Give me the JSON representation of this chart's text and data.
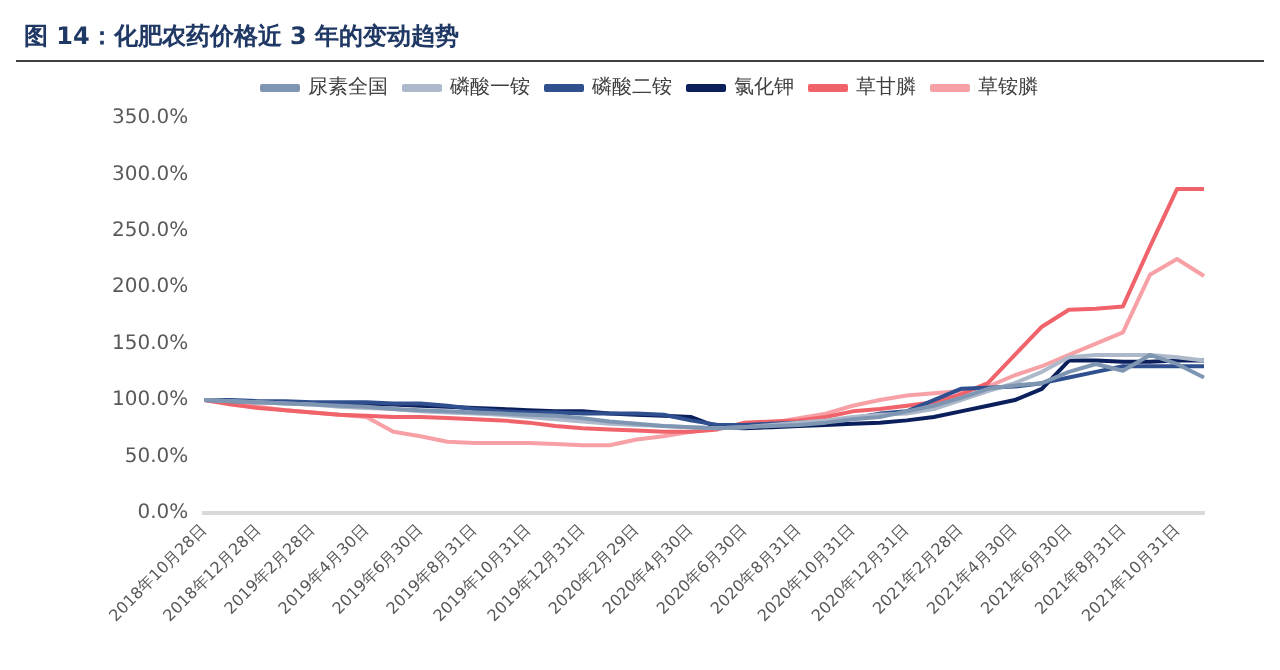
{
  "chart_data": {
    "type": "line",
    "title": "图 14：化肥农药价格近 3 年的变动趋势",
    "categories": [
      "2018年10月28日",
      null,
      "2018年12月28日",
      null,
      "2019年2月28日",
      null,
      "2019年4月30日",
      null,
      "2019年6月30日",
      null,
      "2019年8月31日",
      null,
      "2019年10月31日",
      null,
      "2019年12月31日",
      null,
      "2020年2月29日",
      null,
      "2020年4月30日",
      null,
      "2020年6月30日",
      null,
      "2020年8月31日",
      null,
      "2020年10月31日",
      null,
      "2020年12月31日",
      null,
      "2021年2月28日",
      null,
      "2021年4月30日",
      null,
      "2021年6月30日",
      null,
      "2021年8月31日",
      null,
      "2021年10月31日",
      null
    ],
    "series": [
      {
        "name": "尿素全国",
        "color": "#7f96b2",
        "values": [
          100,
          99,
          98,
          97,
          96,
          95,
          94,
          92,
          91,
          90,
          89,
          88,
          87,
          86,
          84,
          81,
          79,
          77,
          76,
          75,
          76,
          77,
          78,
          80,
          83,
          85,
          90,
          95,
          102,
          110,
          113,
          115,
          125,
          132,
          126,
          140,
          132,
          120
        ]
      },
      {
        "name": "磷酸一铵",
        "color": "#adb9ca",
        "values": [
          100,
          99,
          98,
          97,
          96,
          94,
          93,
          92,
          90,
          89,
          88,
          87,
          85,
          83,
          81,
          79,
          78,
          77,
          76,
          75,
          76,
          78,
          80,
          82,
          85,
          87,
          88,
          92,
          100,
          108,
          115,
          125,
          138,
          140,
          140,
          140,
          138,
          135
        ]
      },
      {
        "name": "磷酸二铵",
        "color": "#2f4f8f",
        "values": [
          100,
          100,
          99,
          99,
          98,
          98,
          98,
          97,
          97,
          95,
          92,
          90,
          89,
          89,
          88,
          88,
          88,
          87,
          82,
          78,
          78,
          79,
          80,
          81,
          84,
          88,
          90,
          100,
          110,
          111,
          112,
          115,
          120,
          125,
          130,
          130,
          130,
          130
        ]
      },
      {
        "name": "氯化钾",
        "color": "#0a1f5c",
        "values": [
          100,
          99,
          98,
          98,
          97,
          97,
          96,
          96,
          95,
          94,
          93,
          92,
          91,
          90,
          90,
          88,
          87,
          86,
          85,
          76,
          75,
          76,
          77,
          78,
          79,
          80,
          82,
          85,
          90,
          95,
          100,
          110,
          135,
          135,
          134,
          134,
          135,
          135
        ]
      },
      {
        "name": "草甘膦",
        "color": "#f0636b",
        "values": [
          100,
          96,
          93,
          91,
          89,
          87,
          86,
          85,
          85,
          84,
          83,
          82,
          80,
          77,
          75,
          74,
          73,
          72,
          72,
          74,
          80,
          81,
          82,
          85,
          90,
          92,
          95,
          98,
          105,
          115,
          140,
          165,
          180,
          181,
          183,
          236,
          287,
          287
        ]
      },
      {
        "name": "草铵膦",
        "color": "#f7a1a6",
        "values": [
          100,
          97,
          94,
          91,
          89,
          87,
          85,
          72,
          68,
          63,
          62,
          62,
          62,
          61,
          60,
          60,
          65,
          68,
          72,
          75,
          78,
          80,
          84,
          88,
          95,
          100,
          104,
          106,
          108,
          112,
          122,
          130,
          140,
          150,
          160,
          211,
          225,
          210
        ]
      }
    ],
    "ylim": [
      0,
      350
    ],
    "yticks": [
      {
        "value": 0,
        "label": "0.0%"
      },
      {
        "value": 50,
        "label": "50.0%"
      },
      {
        "value": 100,
        "label": "100.0%"
      },
      {
        "value": 150,
        "label": "150.0%"
      },
      {
        "value": 200,
        "label": "200.0%"
      },
      {
        "value": 250,
        "label": "250.0%"
      },
      {
        "value": 300,
        "label": "300.0%"
      },
      {
        "value": 350,
        "label": "350.0%"
      }
    ],
    "grid": false,
    "legend": "top",
    "marker": "none",
    "line_style": "solid"
  }
}
